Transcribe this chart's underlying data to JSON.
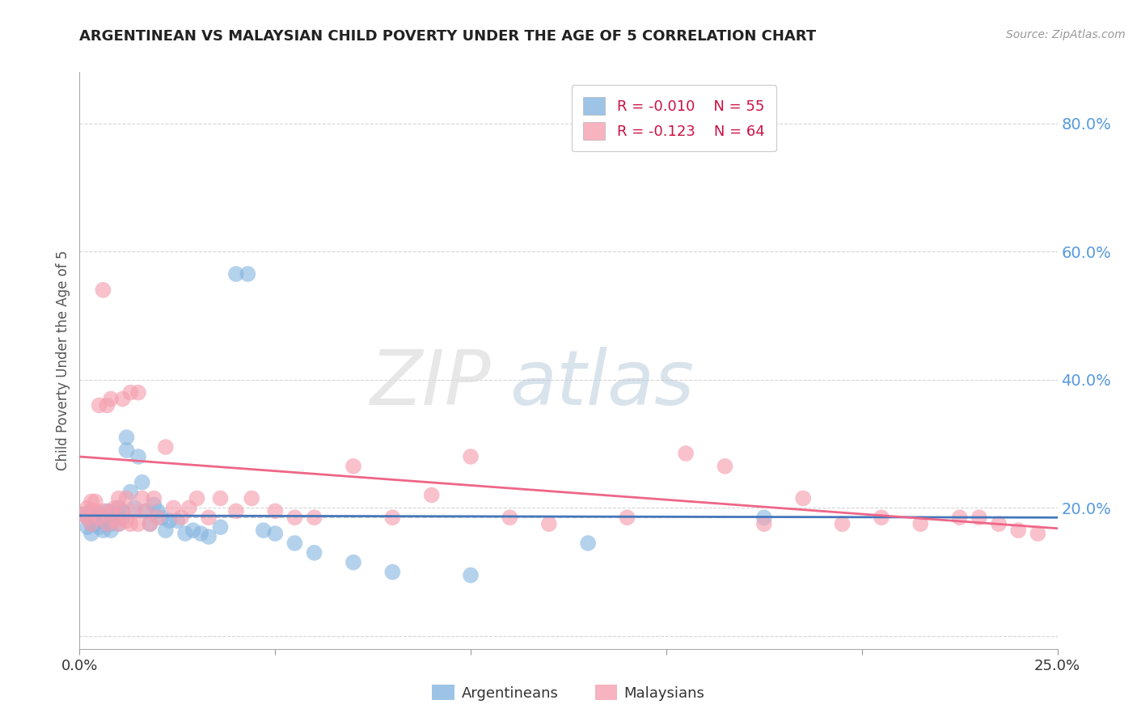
{
  "title": "ARGENTINEAN VS MALAYSIAN CHILD POVERTY UNDER THE AGE OF 5 CORRELATION CHART",
  "source": "Source: ZipAtlas.com",
  "ylabel": "Child Poverty Under the Age of 5",
  "xmin": 0.0,
  "xmax": 0.25,
  "ymin": -0.02,
  "ymax": 0.88,
  "yticks": [
    0.0,
    0.2,
    0.4,
    0.6,
    0.8
  ],
  "ytick_labels": [
    "",
    "20.0%",
    "40.0%",
    "60.0%",
    "80.0%"
  ],
  "xticks": [
    0.0,
    0.05,
    0.1,
    0.15,
    0.2,
    0.25
  ],
  "xtick_labels": [
    "0.0%",
    "",
    "",
    "",
    "",
    "25.0%"
  ],
  "blue_color": "#85B4E0",
  "pink_color": "#F5A0B0",
  "trend_blue": "#4477BB",
  "trend_pink": "#EE6688",
  "dashed_line_y": 0.185,
  "watermark_zip": "ZIP",
  "watermark_atlas": "atlas",
  "background_color": "#FFFFFF",
  "grid_color": "#CCCCCC",
  "axis_label_color": "#5599DD",
  "title_color": "#222222",
  "arg_x": [
    0.001,
    0.002,
    0.002,
    0.003,
    0.003,
    0.003,
    0.004,
    0.004,
    0.004,
    0.005,
    0.005,
    0.005,
    0.006,
    0.006,
    0.007,
    0.007,
    0.007,
    0.008,
    0.008,
    0.009,
    0.009,
    0.01,
    0.01,
    0.011,
    0.011,
    0.012,
    0.012,
    0.013,
    0.014,
    0.015,
    0.016,
    0.017,
    0.018,
    0.019,
    0.02,
    0.021,
    0.022,
    0.023,
    0.025,
    0.027,
    0.029,
    0.031,
    0.033,
    0.036,
    0.04,
    0.043,
    0.047,
    0.05,
    0.055,
    0.06,
    0.07,
    0.08,
    0.1,
    0.13,
    0.175
  ],
  "arg_y": [
    0.19,
    0.17,
    0.185,
    0.175,
    0.16,
    0.195,
    0.18,
    0.175,
    0.185,
    0.17,
    0.19,
    0.185,
    0.165,
    0.18,
    0.175,
    0.185,
    0.195,
    0.175,
    0.165,
    0.19,
    0.185,
    0.175,
    0.2,
    0.185,
    0.195,
    0.29,
    0.31,
    0.225,
    0.2,
    0.28,
    0.24,
    0.195,
    0.175,
    0.205,
    0.195,
    0.185,
    0.165,
    0.18,
    0.18,
    0.16,
    0.165,
    0.16,
    0.155,
    0.17,
    0.565,
    0.565,
    0.165,
    0.16,
    0.145,
    0.13,
    0.115,
    0.1,
    0.095,
    0.145,
    0.185
  ],
  "mal_x": [
    0.001,
    0.002,
    0.002,
    0.003,
    0.003,
    0.004,
    0.004,
    0.005,
    0.005,
    0.006,
    0.006,
    0.007,
    0.007,
    0.008,
    0.008,
    0.009,
    0.009,
    0.01,
    0.01,
    0.011,
    0.011,
    0.012,
    0.012,
    0.013,
    0.013,
    0.014,
    0.015,
    0.015,
    0.016,
    0.017,
    0.018,
    0.019,
    0.02,
    0.022,
    0.024,
    0.026,
    0.028,
    0.03,
    0.033,
    0.036,
    0.04,
    0.044,
    0.05,
    0.055,
    0.06,
    0.07,
    0.08,
    0.09,
    0.1,
    0.11,
    0.12,
    0.14,
    0.155,
    0.165,
    0.175,
    0.185,
    0.195,
    0.205,
    0.215,
    0.225,
    0.23,
    0.235,
    0.24,
    0.245
  ],
  "mal_y": [
    0.19,
    0.185,
    0.2,
    0.175,
    0.21,
    0.195,
    0.21,
    0.185,
    0.36,
    0.195,
    0.54,
    0.36,
    0.175,
    0.195,
    0.37,
    0.18,
    0.2,
    0.175,
    0.215,
    0.195,
    0.37,
    0.215,
    0.18,
    0.175,
    0.38,
    0.195,
    0.38,
    0.175,
    0.215,
    0.195,
    0.175,
    0.215,
    0.185,
    0.295,
    0.2,
    0.185,
    0.2,
    0.215,
    0.185,
    0.215,
    0.195,
    0.215,
    0.195,
    0.185,
    0.185,
    0.265,
    0.185,
    0.22,
    0.28,
    0.185,
    0.175,
    0.185,
    0.285,
    0.265,
    0.175,
    0.215,
    0.175,
    0.185,
    0.175,
    0.185,
    0.185,
    0.175,
    0.165,
    0.16
  ]
}
